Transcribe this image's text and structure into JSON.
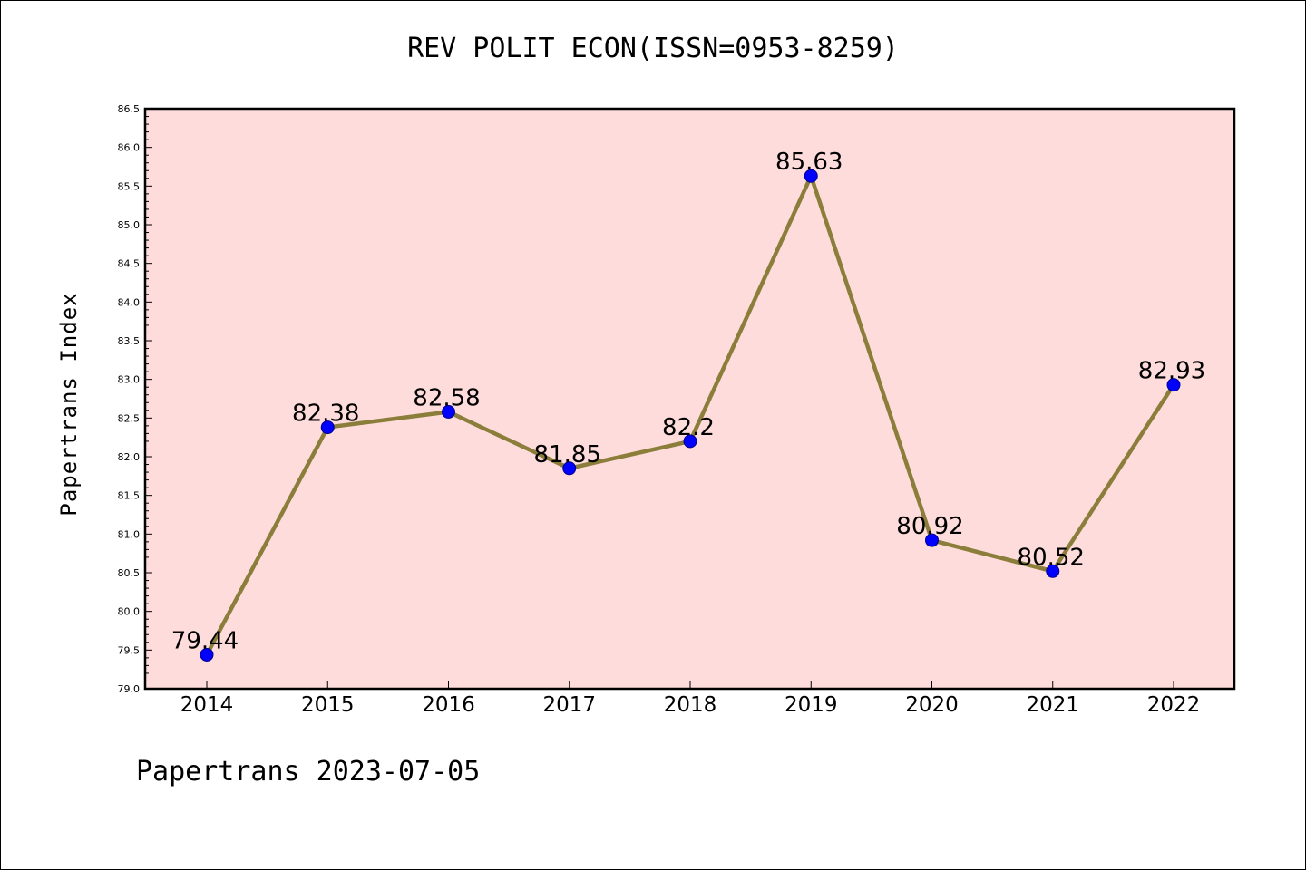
{
  "chart_data": {
    "type": "line",
    "title": "REV POLIT ECON(ISSN=0953-8259)",
    "ylabel": "Papertrans Index",
    "xlabel": "",
    "footer": "Papertrans 2023-07-05",
    "x": [
      "2014",
      "2015",
      "2016",
      "2017",
      "2018",
      "2019",
      "2020",
      "2021",
      "2022"
    ],
    "series": [
      {
        "values": [
          79.44,
          82.38,
          82.58,
          81.85,
          82.2,
          85.63,
          80.92,
          80.52,
          82.93
        ],
        "labels": [
          "79.44",
          "82.38",
          "82.58",
          "81.85",
          "82.2",
          "85.63",
          "80.92",
          "80.52",
          "82.93"
        ]
      }
    ],
    "ylim": [
      79.0,
      86.5
    ],
    "yticks": [
      "79.0",
      "79.5",
      "80.0",
      "80.5",
      "81.0",
      "81.5",
      "82.0",
      "82.5",
      "83.0",
      "83.5",
      "84.0",
      "84.5",
      "85.0",
      "85.5",
      "86.0",
      "86.5"
    ],
    "grid": false,
    "colors": {
      "plot_background": "#ffdcdc",
      "line": "#8b7d3a",
      "marker": "#0000ff",
      "marker_edge": "#00008b"
    }
  }
}
